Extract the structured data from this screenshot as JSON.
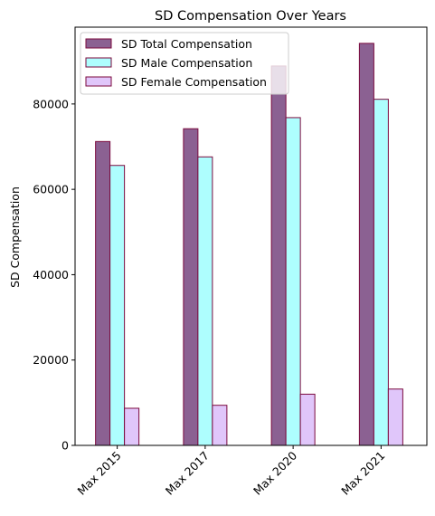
{
  "chart_data": {
    "type": "bar",
    "title": "SD Compensation Over Years",
    "xlabel": "",
    "ylabel": "SD Compensation",
    "categories": [
      "Max 2015",
      "Max 2017",
      "Max 2020",
      "Max 2021"
    ],
    "series": [
      {
        "name": "SD Total Compensation",
        "color": "#8b6192",
        "values": [
          71200,
          74200,
          88900,
          94200
        ]
      },
      {
        "name": "SD Male Compensation",
        "color": "#aefefe",
        "values": [
          65600,
          67600,
          76800,
          81100
        ]
      },
      {
        "name": "SD Female Compensation",
        "color": "#e0c6fa",
        "values": [
          8700,
          9400,
          12000,
          13200
        ]
      }
    ],
    "edge_color": "#7b0a3e",
    "ylim": [
      0,
      98000
    ],
    "yticks": [
      0,
      20000,
      40000,
      60000,
      80000
    ],
    "ytick_labels": [
      "0",
      "20000",
      "40000",
      "60000",
      "80000"
    ],
    "legend_position": "top-left",
    "grid": false
  }
}
